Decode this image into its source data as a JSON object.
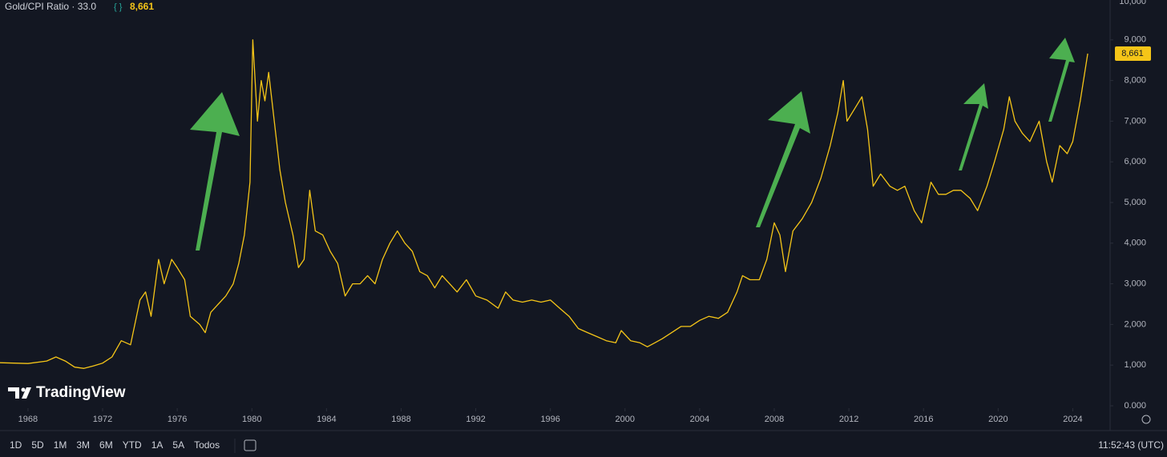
{
  "chart_data": {
    "type": "line",
    "title": "Gold/CPI Ratio · 33.0",
    "current_value_label": "8,661",
    "color": "#f5c518",
    "x": [
      1966.5,
      1968,
      1969,
      1969.5,
      1970,
      1970.5,
      1971,
      1971.5,
      1972,
      1972.5,
      1973,
      1973.5,
      1974,
      1974.3,
      1974.6,
      1975,
      1975.3,
      1975.7,
      1976,
      1976.4,
      1976.7,
      1977.2,
      1977.5,
      1977.8,
      1978.2,
      1978.6,
      1979,
      1979.3,
      1979.6,
      1979.9,
      1980.05,
      1980.3,
      1980.5,
      1980.7,
      1980.9,
      1981.2,
      1981.5,
      1981.8,
      1982.2,
      1982.5,
      1982.8,
      1983.1,
      1983.4,
      1983.8,
      1984.2,
      1984.6,
      1985,
      1985.4,
      1985.8,
      1986.2,
      1986.6,
      1987,
      1987.4,
      1987.8,
      1988.2,
      1988.6,
      1989,
      1989.4,
      1989.8,
      1990.2,
      1990.6,
      1991,
      1991.5,
      1992,
      1992.6,
      1993.2,
      1993.6,
      1994,
      1994.5,
      1995,
      1995.5,
      1996,
      1996.5,
      1997,
      1997.5,
      1998,
      1998.5,
      1999,
      1999.5,
      1999.8,
      2000.3,
      2000.8,
      2001.2,
      2001.6,
      2002,
      2002.5,
      2003,
      2003.5,
      2004,
      2004.5,
      2005,
      2005.5,
      2006,
      2006.3,
      2006.7,
      2007.2,
      2007.6,
      2008,
      2008.3,
      2008.6,
      2009,
      2009.5,
      2010,
      2010.5,
      2011,
      2011.4,
      2011.7,
      2011.9,
      2012.3,
      2012.7,
      2013,
      2013.3,
      2013.7,
      2014.2,
      2014.6,
      2015,
      2015.5,
      2015.9,
      2016.4,
      2016.8,
      2017.2,
      2017.6,
      2018,
      2018.5,
      2018.9,
      2019.4,
      2019.8,
      2020.3,
      2020.6,
      2020.9,
      2021.3,
      2021.7,
      2022.2,
      2022.6,
      2022.9,
      2023.3,
      2023.7,
      2024,
      2024.4,
      2024.8
    ],
    "values": [
      1060,
      1040,
      1100,
      1200,
      1100,
      950,
      920,
      980,
      1050,
      1200,
      1600,
      1500,
      2600,
      2800,
      2200,
      3600,
      3000,
      3600,
      3400,
      3100,
      2200,
      2000,
      1800,
      2300,
      2500,
      2700,
      3000,
      3500,
      4200,
      5500,
      9000,
      7000,
      8000,
      7500,
      8200,
      7000,
      5800,
      5000,
      4200,
      3400,
      3600,
      5300,
      4300,
      4200,
      3800,
      3500,
      2700,
      3000,
      3000,
      3200,
      3000,
      3600,
      4000,
      4300,
      4000,
      3800,
      3300,
      3200,
      2900,
      3200,
      3000,
      2800,
      3100,
      2700,
      2600,
      2400,
      2800,
      2600,
      2550,
      2600,
      2550,
      2600,
      2400,
      2200,
      1900,
      1800,
      1700,
      1600,
      1550,
      1850,
      1600,
      1550,
      1450,
      1550,
      1650,
      1800,
      1950,
      1950,
      2100,
      2200,
      2150,
      2300,
      2800,
      3200,
      3100,
      3100,
      3600,
      4500,
      4200,
      3300,
      4300,
      4600,
      5000,
      5600,
      6400,
      7200,
      8000,
      7000,
      7300,
      7600,
      6800,
      5400,
      5700,
      5400,
      5300,
      5400,
      4800,
      4500,
      5500,
      5200,
      5200,
      5300,
      5300,
      5100,
      4800,
      5400,
      6000,
      6800,
      7600,
      7000,
      6700,
      6500,
      7000,
      6000,
      5500,
      6400,
      6200,
      6500,
      7500,
      8661
    ],
    "xlim": [
      1966.5,
      2026
    ],
    "xticks": [
      1968,
      1972,
      1976,
      1980,
      1984,
      1988,
      1992,
      1996,
      2000,
      2004,
      2008,
      2012,
      2016,
      2020,
      2024
    ],
    "ylim": [
      0,
      10000
    ],
    "yticks": [
      {
        "value": 0,
        "label": "0.000"
      },
      {
        "value": 1000,
        "label": "1,000"
      },
      {
        "value": 2000,
        "label": "2,000"
      },
      {
        "value": 3000,
        "label": "3,000"
      },
      {
        "value": 4000,
        "label": "4,000"
      },
      {
        "value": 5000,
        "label": "5,000"
      },
      {
        "value": 6000,
        "label": "6,000"
      },
      {
        "value": 7000,
        "label": "7,000"
      },
      {
        "value": 8000,
        "label": "8,000"
      },
      {
        "value": 9000,
        "label": "9,000"
      },
      {
        "value": 10000,
        "label": "10,000"
      }
    ]
  },
  "brand": "TradingView",
  "toolbar": {
    "ranges": [
      "1D",
      "5D",
      "1M",
      "3M",
      "6M",
      "YTD",
      "1A",
      "5A",
      "Todos"
    ],
    "time": "11:52:43 (UTC)"
  }
}
